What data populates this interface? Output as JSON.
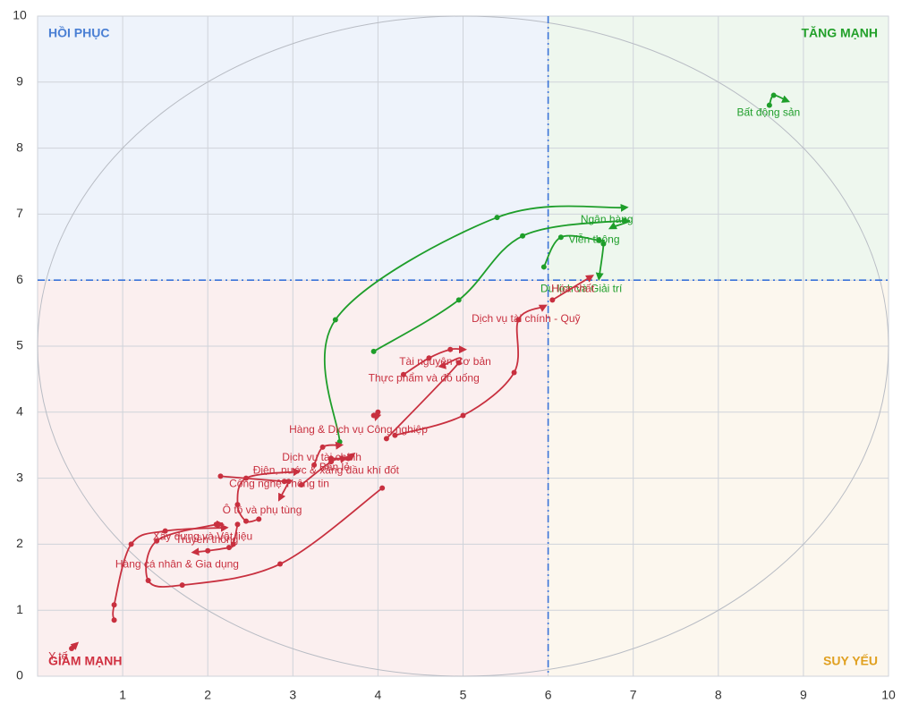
{
  "chart_data": {
    "type": "rotation",
    "quadrant_labels": {
      "top_left": "HỒI PHỤC",
      "top_right": "TĂNG MẠNH",
      "bottom_left": "GIẢM MẠNH",
      "bottom_right": "SUY YẾU"
    },
    "x_threshold": 6,
    "y_threshold": 6,
    "xlim": [
      0,
      10
    ],
    "ylim": [
      0,
      10
    ],
    "xticks": [
      1,
      2,
      3,
      4,
      5,
      6,
      7,
      8,
      9,
      10
    ],
    "yticks": [
      0,
      1,
      2,
      3,
      4,
      5,
      6,
      7,
      8,
      9,
      10
    ],
    "grid": true,
    "series": [
      {
        "name": "Bất động sản",
        "color": "#1e9e2a",
        "x": [
          8.6,
          8.65,
          8.8
        ],
        "y": [
          8.65,
          8.8,
          8.72
        ]
      },
      {
        "name": "Ngân hàng",
        "color": "#1e9e2a",
        "x": [
          3.55,
          3.5,
          5.4,
          6.9
        ],
        "y": [
          3.55,
          5.4,
          6.95,
          7.1
        ]
      },
      {
        "name": "Viễn thông",
        "color": "#1e9e2a",
        "x": [
          3.95,
          4.95,
          5.7,
          6.9,
          6.75
        ],
        "y": [
          4.92,
          5.7,
          6.67,
          6.9,
          6.8
        ]
      },
      {
        "name": "Du lịch và Giải trí",
        "color": "#1e9e2a",
        "x": [
          5.95,
          6.15,
          6.6,
          6.65,
          6.6
        ],
        "y": [
          6.2,
          6.65,
          6.6,
          6.55,
          6.05
        ]
      },
      {
        "name": "Hóa chất",
        "color": "#c8303f",
        "x": [
          6.05,
          6.5
        ],
        "y": [
          5.7,
          6.05
        ]
      },
      {
        "name": "Dịch vụ tài chính - Quỹ",
        "color": "#c8303f",
        "x": [
          4.2,
          5.0,
          5.6,
          5.65,
          5.95
        ],
        "y": [
          3.65,
          3.95,
          4.6,
          5.4,
          5.6
        ]
      },
      {
        "name": "Tài nguyên Cơ bản",
        "color": "#c8303f",
        "x": [
          4.3,
          4.6,
          4.85,
          5.0
        ],
        "y": [
          4.57,
          4.82,
          4.95,
          4.95
        ]
      },
      {
        "name": "Thực phẩm và đồ uống",
        "color": "#c8303f",
        "x": [
          4.1,
          4.95,
          4.75
        ],
        "y": [
          3.6,
          4.75,
          4.7
        ]
      },
      {
        "name": "Hàng & Dịch vụ Công nghiệp",
        "color": "#c8303f",
        "x": [
          3.95,
          4.0,
          3.98
        ],
        "y": [
          3.95,
          4.0,
          3.92
        ]
      },
      {
        "name": "Dịch vụ tài chính",
        "color": "#c8303f",
        "x": [
          3.25,
          3.35,
          3.55
        ],
        "y": [
          3.2,
          3.47,
          3.5
        ]
      },
      {
        "name": "Bán lẻ",
        "color": "#c8303f",
        "x": [
          3.45,
          3.65,
          3.7
        ],
        "y": [
          3.3,
          3.3,
          3.35
        ]
      },
      {
        "name": "Điện, nước & xăng dầu khí đốt",
        "color": "#c8303f",
        "x": [
          3.1,
          3.45,
          3.6
        ],
        "y": [
          2.9,
          3.25,
          3.3
        ]
      },
      {
        "name": "Xây dựng và Vật liệu",
        "color": "#c8303f",
        "x": [
          4.05,
          2.85,
          1.7,
          1.3,
          1.4,
          2.1,
          2.15
        ],
        "y": [
          2.85,
          1.7,
          1.38,
          1.45,
          2.05,
          2.3,
          2.3
        ]
      },
      {
        "name": "Công nghệ Thông tin",
        "color": "#c8303f",
        "x": [
          2.6,
          2.45,
          2.35,
          2.45,
          3.05
        ],
        "y": [
          2.38,
          2.35,
          2.6,
          3.0,
          3.1
        ]
      },
      {
        "name": "Ô tô và phụ tùng",
        "color": "#c8303f",
        "x": [
          2.15,
          2.9,
          2.95,
          2.85
        ],
        "y": [
          3.03,
          2.95,
          2.95,
          2.7
        ]
      },
      {
        "name": "Hàng cá nhân & Gia dụng",
        "color": "#c8303f",
        "x": [
          2.35,
          2.3,
          2.25,
          2.0,
          1.85
        ],
        "y": [
          2.3,
          2.0,
          1.95,
          1.9,
          1.88
        ]
      },
      {
        "name": "Truyền thông",
        "color": "#c8303f",
        "x": [
          0.9,
          0.9,
          1.1,
          1.5,
          2.2
        ],
        "y": [
          0.85,
          1.08,
          2.0,
          2.2,
          2.25
        ]
      },
      {
        "name": "Y tế",
        "color": "#c8303f",
        "x": [
          0.4,
          0.45
        ],
        "y": [
          0.42,
          0.48
        ]
      }
    ]
  }
}
